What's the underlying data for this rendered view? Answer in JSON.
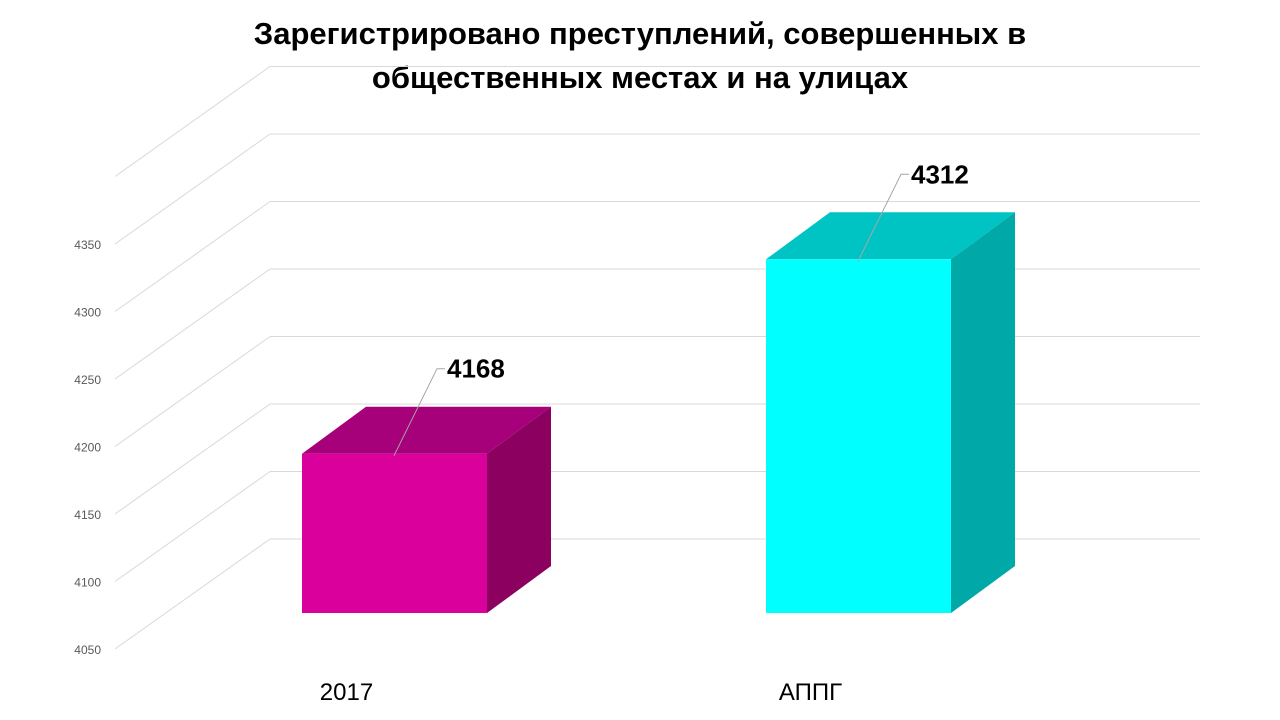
{
  "chart_data": {
    "type": "bar",
    "title_lines": [
      "Зарегистрировано преступлений, совершенных в",
      "общественных местах и на улицах"
    ],
    "categories": [
      "2017",
      "АППГ"
    ],
    "values": [
      4168,
      4312
    ],
    "data_labels": [
      "4168",
      "4312"
    ],
    "yticks": [
      "4050",
      "4100",
      "4150",
      "4200",
      "4250",
      "4300",
      "4350"
    ],
    "ylim": [
      4050,
      4350
    ],
    "three_d": true,
    "grid": true,
    "legend": "none",
    "colors": {
      "2017": {
        "front": "#D9009B",
        "top": "#A6007A",
        "side": "#8C0060"
      },
      "АППГ": {
        "front": "#00FFFF",
        "top": "#00C4C4",
        "side": "#00A8A8"
      },
      "grid": "#D9D9D9",
      "leader": "#A6A6A6"
    }
  }
}
